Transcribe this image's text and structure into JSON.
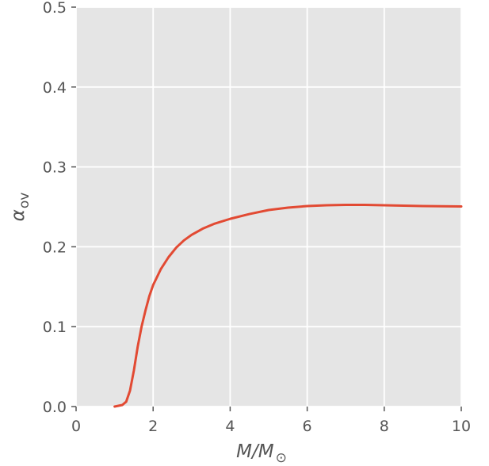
{
  "chart_data": {
    "type": "line",
    "title": "",
    "xlabel": {
      "main": "M/M",
      "sub": "⊙"
    },
    "ylabel": {
      "main": "α",
      "sub": "ov"
    },
    "xlim": [
      0,
      10
    ],
    "ylim": [
      0,
      0.5
    ],
    "x_ticks": [
      0,
      2,
      4,
      6,
      8,
      10
    ],
    "x_tick_labels": [
      "0",
      "2",
      "4",
      "6",
      "8",
      "10"
    ],
    "y_ticks": [
      0.0,
      0.1,
      0.2,
      0.3,
      0.4,
      0.5
    ],
    "y_tick_labels": [
      "0.0",
      "0.1",
      "0.2",
      "0.3",
      "0.4",
      "0.5"
    ],
    "grid": true,
    "colors": {
      "background": "#e5e5e5",
      "grid": "#ffffff",
      "line": "#e24a33",
      "tick": "#555555"
    },
    "series": [
      {
        "x": [
          1.0,
          1.2,
          1.3,
          1.4,
          1.5,
          1.6,
          1.7,
          1.8,
          1.9,
          2.0,
          2.2,
          2.4,
          2.6,
          2.8,
          3.0,
          3.3,
          3.6,
          4.0,
          4.5,
          5.0,
          5.5,
          6.0,
          6.5,
          7.0,
          7.5,
          8.0,
          8.5,
          9.0,
          9.5,
          10.0
        ],
        "y": [
          0.0,
          0.002,
          0.006,
          0.02,
          0.045,
          0.075,
          0.1,
          0.12,
          0.138,
          0.152,
          0.172,
          0.187,
          0.199,
          0.208,
          0.215,
          0.223,
          0.229,
          0.235,
          0.241,
          0.246,
          0.249,
          0.251,
          0.252,
          0.2525,
          0.2525,
          0.252,
          0.2515,
          0.251,
          0.2508,
          0.2505
        ]
      }
    ]
  }
}
